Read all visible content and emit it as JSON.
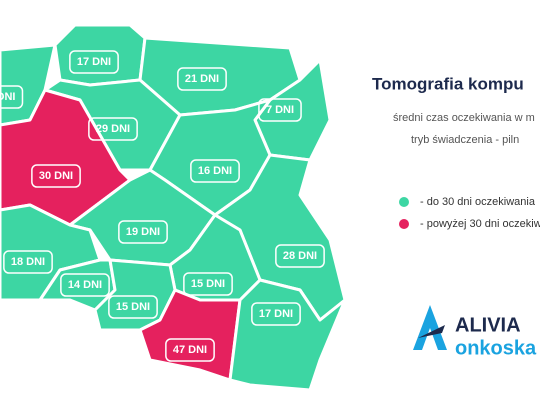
{
  "header": {
    "title": "Tomografia kompu",
    "subtitle_lines": [
      "średni czas oczekiwania w m",
      "tryb świadczenia - piln"
    ]
  },
  "map": {
    "regions": [
      {
        "label": "DNI",
        "color": "#3dd6a3"
      },
      {
        "label": "17 DNI",
        "color": "#3dd6a3"
      },
      {
        "label": "21 DNI",
        "color": "#3dd6a3"
      },
      {
        "label": "7 DNI",
        "color": "#3dd6a3"
      },
      {
        "label": "29 DNI",
        "color": "#3dd6a3"
      },
      {
        "label": "30 DNI",
        "color": "#e5215e"
      },
      {
        "label": "16 DNI",
        "color": "#3dd6a3"
      },
      {
        "label": "19 DNI",
        "color": "#3dd6a3"
      },
      {
        "label": "28 DNI",
        "color": "#3dd6a3"
      },
      {
        "label": "18 DNI",
        "color": "#3dd6a3"
      },
      {
        "label": "14 DNI",
        "color": "#3dd6a3"
      },
      {
        "label": "15 DNI",
        "color": "#3dd6a3"
      },
      {
        "label": "15 DNI",
        "color": "#3dd6a3"
      },
      {
        "label": "47 DNI",
        "color": "#e5215e"
      },
      {
        "label": "17 DNI",
        "color": "#3dd6a3"
      }
    ]
  },
  "legend": {
    "items": [
      {
        "label": "- do 30 dni oczekiwania",
        "color": "#3dd6a3"
      },
      {
        "label": "- powyżej 30 dni oczekiw",
        "color": "#e5215e"
      }
    ]
  },
  "logo": {
    "name": "ALIVIA",
    "sub": "onkoska"
  }
}
